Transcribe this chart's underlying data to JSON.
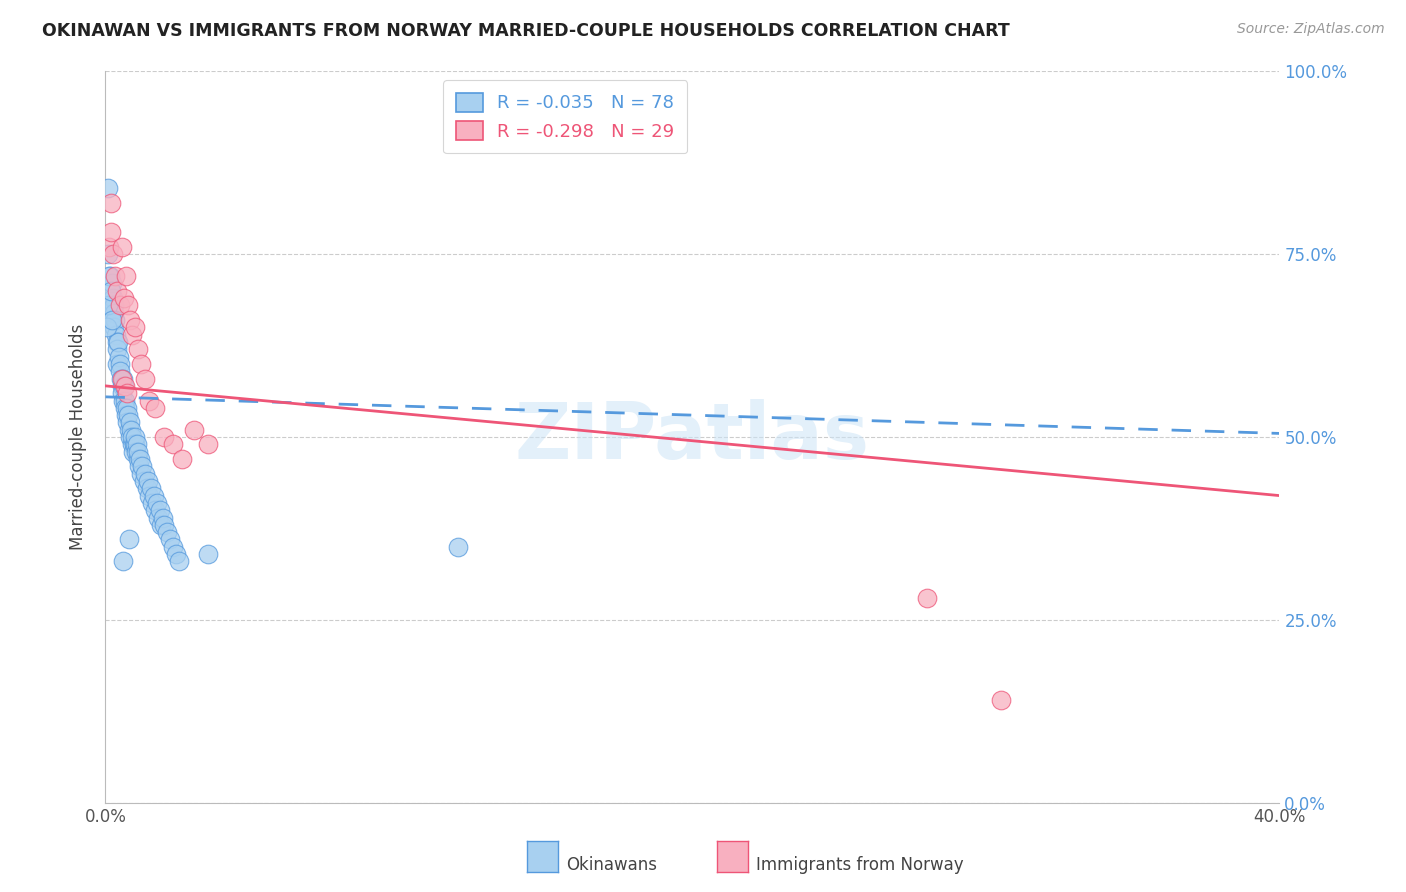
{
  "title": "OKINAWAN VS IMMIGRANTS FROM NORWAY MARRIED-COUPLE HOUSEHOLDS CORRELATION CHART",
  "source": "Source: ZipAtlas.com",
  "ylabel": "Married-couple Households",
  "right_yticklabels": [
    "0.0%",
    "25.0%",
    "50.0%",
    "75.0%",
    "100.0%"
  ],
  "watermark": "ZIPatlas",
  "series1_label": "Okinawans",
  "series2_label": "Immigrants from Norway",
  "series1_color": "#a8d0f0",
  "series2_color": "#f8b0c0",
  "trend1_color": "#5599dd",
  "trend2_color": "#ee5577",
  "xmin": 0.0,
  "xmax": 0.4,
  "ymin": 0.0,
  "ymax": 1.0,
  "legend_labels": [
    "R = -0.035   N = 78",
    "R = -0.298   N = 29"
  ],
  "okinawan_x": [
    0.001,
    0.0015,
    0.0018,
    0.002,
    0.0022,
    0.0025,
    0.0028,
    0.003,
    0.003,
    0.0032,
    0.0035,
    0.0038,
    0.004,
    0.004,
    0.0042,
    0.0045,
    0.0048,
    0.005,
    0.0052,
    0.0055,
    0.0058,
    0.006,
    0.006,
    0.0062,
    0.0065,
    0.0068,
    0.007,
    0.0072,
    0.0075,
    0.0078,
    0.008,
    0.0082,
    0.0085,
    0.0088,
    0.009,
    0.0092,
    0.0095,
    0.0098,
    0.01,
    0.0102,
    0.0105,
    0.0108,
    0.011,
    0.0112,
    0.0115,
    0.0118,
    0.012,
    0.0125,
    0.013,
    0.0135,
    0.014,
    0.0145,
    0.015,
    0.0155,
    0.016,
    0.0165,
    0.017,
    0.0175,
    0.018,
    0.0185,
    0.019,
    0.0195,
    0.02,
    0.021,
    0.022,
    0.023,
    0.024,
    0.025,
    0.001,
    0.0008,
    0.0012,
    0.0005,
    0.0018,
    0.0022,
    0.035,
    0.12,
    0.006,
    0.008
  ],
  "okinawan_y": [
    0.84,
    0.72,
    0.68,
    0.66,
    0.71,
    0.69,
    0.68,
    0.67,
    0.65,
    0.66,
    0.64,
    0.63,
    0.62,
    0.6,
    0.63,
    0.61,
    0.6,
    0.59,
    0.58,
    0.57,
    0.56,
    0.58,
    0.55,
    0.57,
    0.55,
    0.54,
    0.53,
    0.54,
    0.52,
    0.53,
    0.51,
    0.52,
    0.5,
    0.51,
    0.49,
    0.5,
    0.48,
    0.49,
    0.49,
    0.5,
    0.48,
    0.49,
    0.47,
    0.48,
    0.46,
    0.47,
    0.45,
    0.46,
    0.44,
    0.45,
    0.43,
    0.44,
    0.42,
    0.43,
    0.41,
    0.42,
    0.4,
    0.41,
    0.39,
    0.4,
    0.38,
    0.39,
    0.38,
    0.37,
    0.36,
    0.35,
    0.34,
    0.33,
    0.75,
    0.68,
    0.72,
    0.65,
    0.7,
    0.66,
    0.34,
    0.35,
    0.33,
    0.36
  ],
  "norway_x": [
    0.0012,
    0.0018,
    0.0025,
    0.0032,
    0.004,
    0.0048,
    0.0055,
    0.0062,
    0.007,
    0.0078,
    0.0085,
    0.0092,
    0.01,
    0.011,
    0.012,
    0.0135,
    0.015,
    0.017,
    0.02,
    0.023,
    0.026,
    0.03,
    0.035,
    0.002,
    0.0055,
    0.0065,
    0.0075,
    0.28,
    0.305
  ],
  "norway_y": [
    0.76,
    0.78,
    0.75,
    0.72,
    0.7,
    0.68,
    0.76,
    0.69,
    0.72,
    0.68,
    0.66,
    0.64,
    0.65,
    0.62,
    0.6,
    0.58,
    0.55,
    0.54,
    0.5,
    0.49,
    0.47,
    0.51,
    0.49,
    0.82,
    0.58,
    0.57,
    0.56,
    0.28,
    0.14
  ],
  "trend1_x": [
    0.0,
    0.4
  ],
  "trend1_y": [
    0.555,
    0.505
  ],
  "trend2_x": [
    0.0,
    0.4
  ],
  "trend2_y": [
    0.57,
    0.42
  ]
}
